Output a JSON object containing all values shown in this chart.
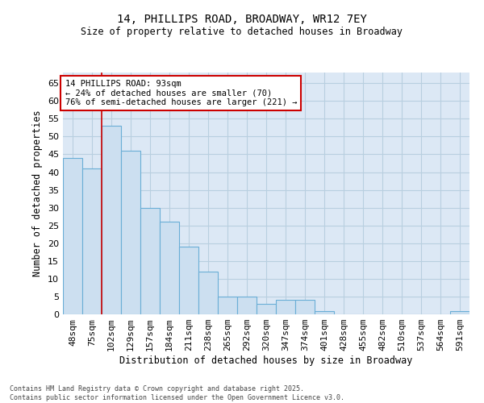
{
  "title1": "14, PHILLIPS ROAD, BROADWAY, WR12 7EY",
  "title2": "Size of property relative to detached houses in Broadway",
  "xlabel": "Distribution of detached houses by size in Broadway",
  "ylabel": "Number of detached properties",
  "categories": [
    "48sqm",
    "75sqm",
    "102sqm",
    "129sqm",
    "157sqm",
    "184sqm",
    "211sqm",
    "238sqm",
    "265sqm",
    "292sqm",
    "320sqm",
    "347sqm",
    "374sqm",
    "401sqm",
    "428sqm",
    "455sqm",
    "482sqm",
    "510sqm",
    "537sqm",
    "564sqm",
    "591sqm"
  ],
  "values": [
    44,
    41,
    53,
    46,
    30,
    26,
    19,
    12,
    5,
    5,
    3,
    4,
    4,
    1,
    0,
    0,
    0,
    0,
    0,
    0,
    1
  ],
  "bar_color": "#ccdff0",
  "bar_edge_color": "#6aaed6",
  "grid_color": "#b8cfe0",
  "bg_color": "#dce8f5",
  "vline_x": 1.5,
  "vline_color": "#cc0000",
  "annotation_text": "14 PHILLIPS ROAD: 93sqm\n← 24% of detached houses are smaller (70)\n76% of semi-detached houses are larger (221) →",
  "annotation_box_color": "#cc0000",
  "footnote": "Contains HM Land Registry data © Crown copyright and database right 2025.\nContains public sector information licensed under the Open Government Licence v3.0.",
  "ylim": [
    0,
    68
  ],
  "yticks": [
    0,
    5,
    10,
    15,
    20,
    25,
    30,
    35,
    40,
    45,
    50,
    55,
    60,
    65
  ]
}
